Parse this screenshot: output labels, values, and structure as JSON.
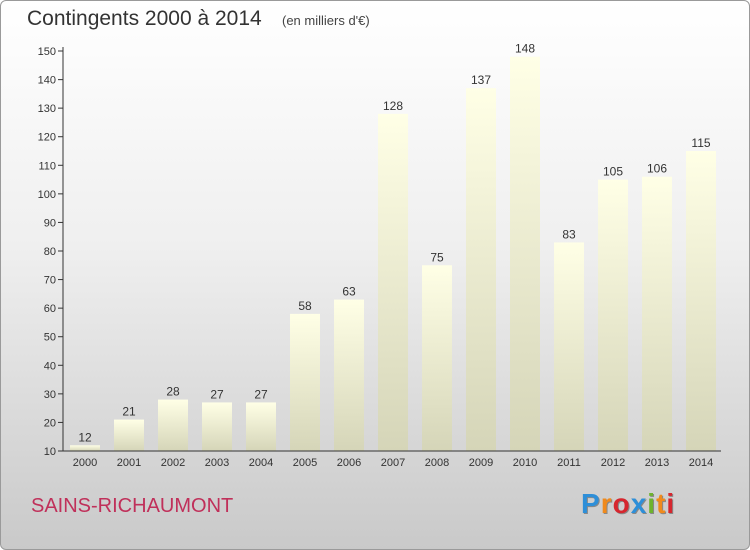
{
  "title": "Contingents 2000 à 2014",
  "subtitle": "(en milliers d'€)",
  "commune": "SAINS-RICHAUMONT",
  "logo": {
    "text": "Proxiti",
    "colors": [
      "#2e8fd8",
      "#f08a1c",
      "#d6262e",
      "#2e8fd8",
      "#6db32e",
      "#f08a1c",
      "#d6262e"
    ]
  },
  "colors": {
    "bar_top": "#ffffe6",
    "bar_bottom": "#d5d5b8",
    "title": "#333333",
    "commune": "#c0305a"
  },
  "chart_data": {
    "type": "bar",
    "categories": [
      "2000",
      "2001",
      "2002",
      "2003",
      "2004",
      "2005",
      "2006",
      "2007",
      "2008",
      "2009",
      "2010",
      "2011",
      "2012",
      "2013",
      "2014"
    ],
    "values": [
      12,
      21,
      28,
      27,
      27,
      58,
      63,
      128,
      75,
      137,
      148,
      83,
      105,
      106,
      115
    ],
    "yticks": [
      10,
      20,
      30,
      40,
      50,
      60,
      70,
      80,
      90,
      100,
      110,
      120,
      130,
      140,
      150
    ],
    "ylim": [
      10,
      150
    ],
    "grid": false,
    "legend": "none"
  }
}
